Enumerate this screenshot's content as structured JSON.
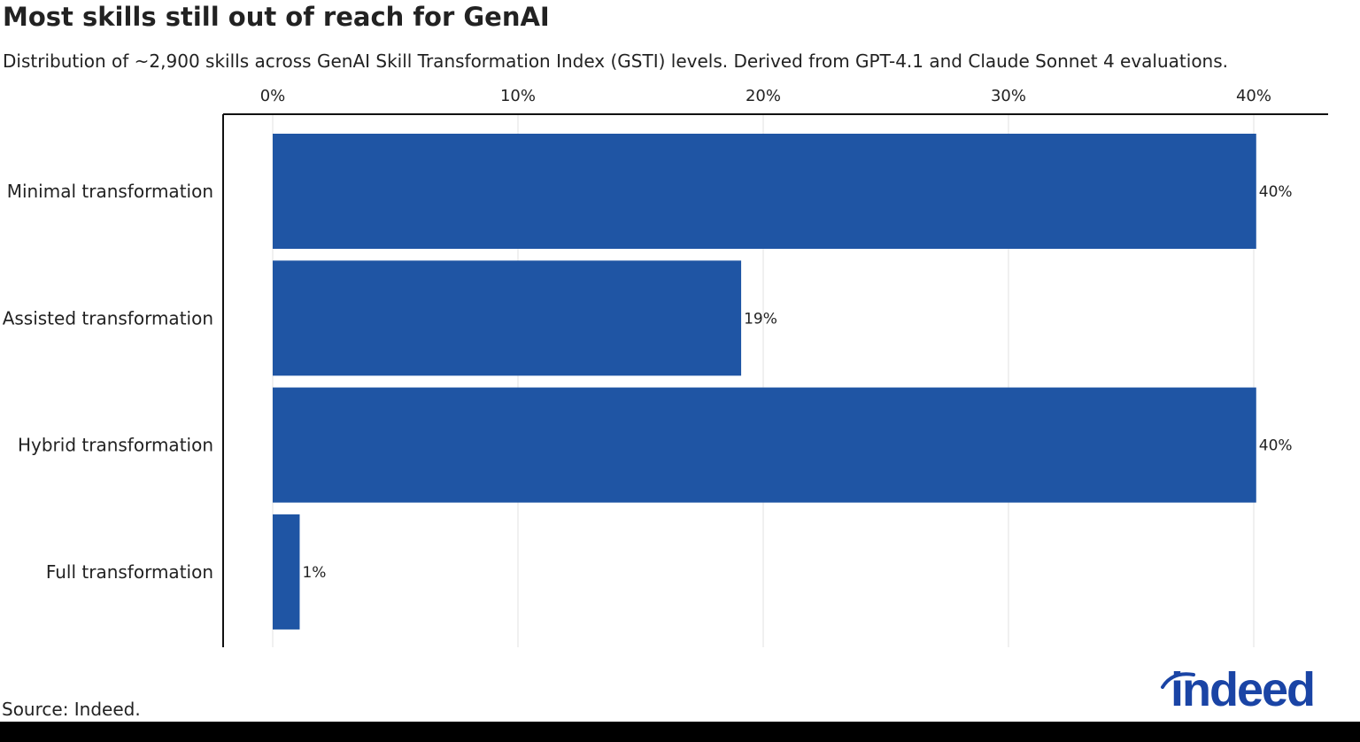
{
  "title": "Most skills still out of reach for GenAI",
  "subtitle": "Distribution of ~2,900 skills across GenAI Skill Transformation Index (GSTI) levels. Derived from GPT-4.1 and Claude Sonnet 4 evaluations.",
  "source": "Source: Indeed.",
  "logo_text": "indeed",
  "colors": {
    "bar": "#1f55a4",
    "text": "#222222",
    "grid": "#e2e2e2",
    "axis": "#111111",
    "logo": "#1a44a5"
  },
  "chart_data": {
    "type": "bar",
    "orientation": "horizontal",
    "categories": [
      "Minimal transformation",
      "Assisted transformation",
      "Hybrid transformation",
      "Full transformation"
    ],
    "values": [
      40.1,
      19.1,
      40.1,
      1.1
    ],
    "value_labels": [
      "40%",
      "19%",
      "40%",
      "1%"
    ],
    "ticks": [
      0,
      10,
      20,
      30,
      40
    ],
    "tick_labels": [
      "0%",
      "10%",
      "20%",
      "30%",
      "40%"
    ],
    "xlim": [
      -2,
      43
    ],
    "axis_position": "top",
    "grid": true
  }
}
